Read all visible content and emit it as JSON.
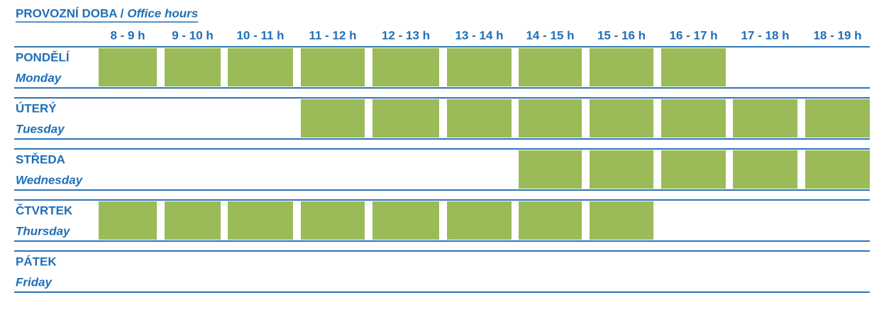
{
  "title": "PROVOZNÍ DOBA /",
  "title_en": "Office hours",
  "hours": [
    "8 - 9 h",
    "9 - 10 h",
    "10 - 11 h",
    "11 - 12 h",
    "12 - 13 h",
    "13 - 14 h",
    "14 - 15 h",
    "15 - 16 h",
    "16 - 17 h",
    "17 - 18 h",
    "18 - 19 h"
  ],
  "days": [
    {
      "name": "PONDĚLÍ",
      "name_en": "Monday",
      "open": [
        true,
        true,
        true,
        true,
        true,
        true,
        true,
        true,
        true,
        false,
        false
      ]
    },
    {
      "name": "ÚTERÝ",
      "name_en": "Tuesday",
      "open": [
        false,
        false,
        false,
        true,
        true,
        true,
        true,
        true,
        true,
        true,
        true
      ]
    },
    {
      "name": "STŘEDA",
      "name_en": "Wednesday",
      "open": [
        false,
        false,
        false,
        false,
        false,
        false,
        true,
        true,
        true,
        true,
        true
      ]
    },
    {
      "name": "ČTVRTEK",
      "name_en": "Thursday",
      "open": [
        true,
        true,
        true,
        true,
        true,
        true,
        true,
        true,
        false,
        false,
        false
      ]
    },
    {
      "name": "PÁTEK",
      "name_en": "Friday",
      "open": [
        false,
        false,
        false,
        false,
        false,
        false,
        false,
        false,
        false,
        false,
        false
      ]
    }
  ]
}
